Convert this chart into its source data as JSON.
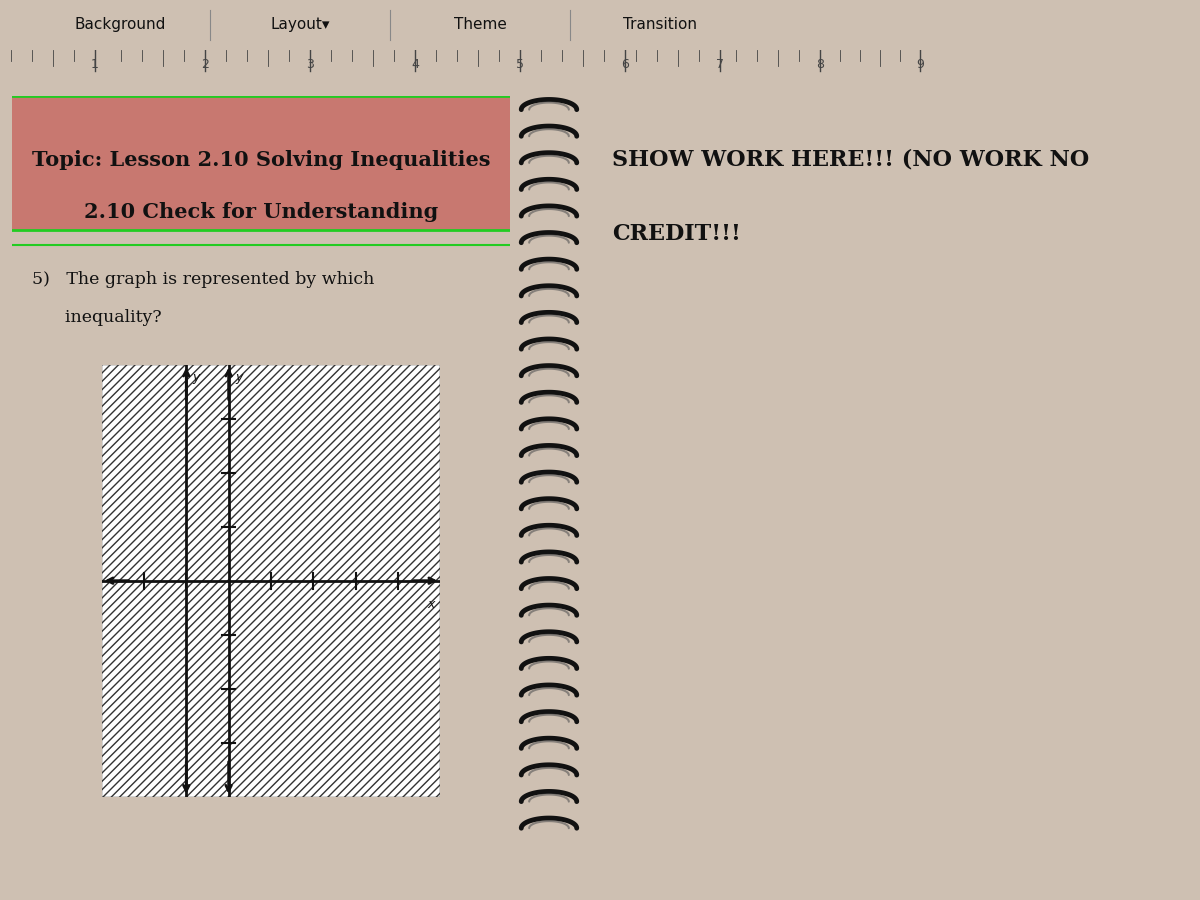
{
  "bg_color": "#cec0b2",
  "toolbar_bg": "#a8b4c4",
  "toolbar_text": "Background    Layout▾    Theme    Transition",
  "ruler_bg": "#c0b8aa",
  "ruler_tick_color": "#444444",
  "ruler_numbers": [
    "1",
    "2",
    "3",
    "4",
    "5",
    "6",
    "7",
    "8",
    "9"
  ],
  "left_panel_bg": "#ddc8c0",
  "left_panel_border": "#22cc22",
  "title_box_bg": "#c87870",
  "title_text1": "Topic: Lesson 2.10 Solving Inequalities",
  "title_text2": "2.10 Check for Understanding",
  "question_line1": "5)   The graph is represented by which",
  "question_line2": "      inequality?",
  "right_panel_bg": "#ccdccc",
  "show_work_line1": "SHOW WORK HERE!!! (NO WORK NO",
  "show_work_line2": "CREDIT!!!",
  "spiral_color": "#111111",
  "spiral_bg": "#909090",
  "spiral_count": 28,
  "graph_bg": "#f0f0e8",
  "graph_hatch_color": "#333333",
  "axis_color": "#111111",
  "x_label": "x",
  "y_label": "y"
}
